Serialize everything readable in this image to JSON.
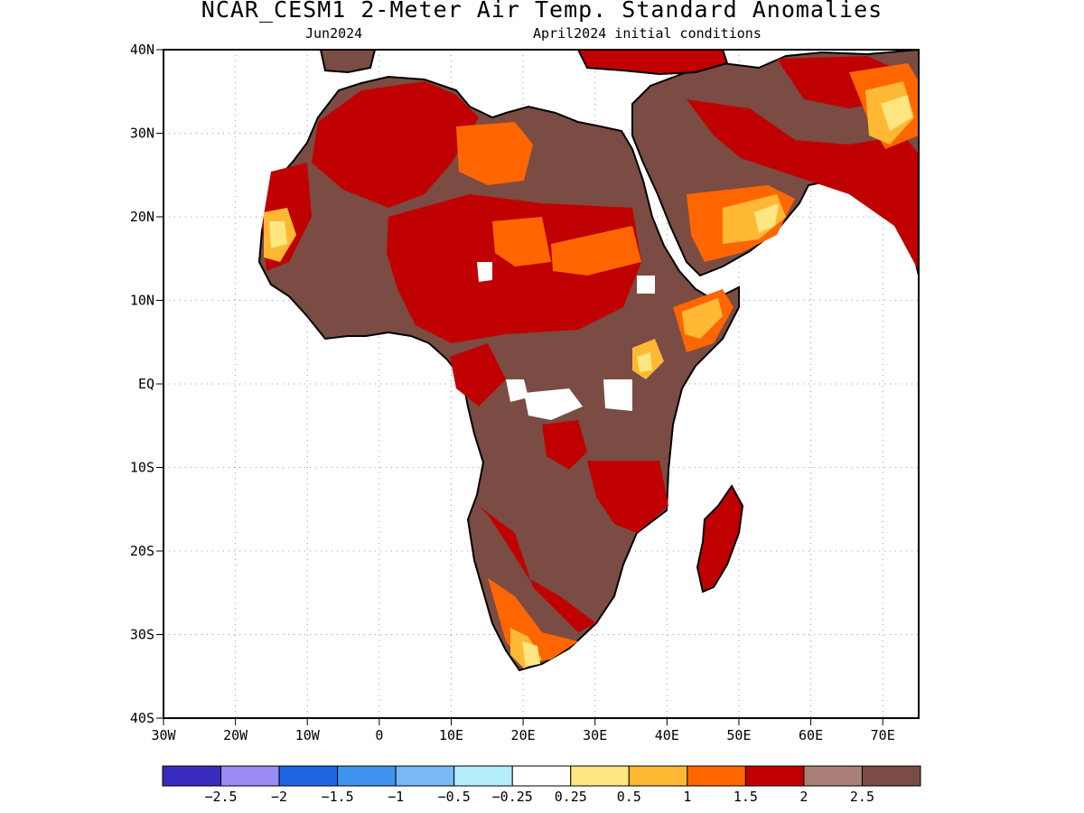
{
  "header": {
    "title": "NCAR_CESM1 2-Meter Air Temp. Standard Anomalies",
    "valid_month": "Jun2024",
    "initial_conditions": "April2024 initial conditions"
  },
  "map": {
    "lon_range": [
      -30,
      75
    ],
    "lat_range": [
      -40,
      40
    ],
    "lat_ticks": [
      "40N",
      "30N",
      "20N",
      "10N",
      "EQ",
      "10S",
      "20S",
      "30S",
      "40S"
    ],
    "lon_ticks": [
      "30W",
      "20W",
      "10W",
      "0",
      "10E",
      "20E",
      "30E",
      "40E",
      "50E",
      "60E",
      "70E"
    ],
    "grid": true,
    "land_fill_color": "#7a4c43"
  },
  "colorbar": {
    "colors": [
      "#3a2bbf",
      "#9c8af5",
      "#1f66e5",
      "#3f94f0",
      "#77b8f5",
      "#b3eefa",
      "#ffffff",
      "#ffe680",
      "#ffb833",
      "#ff6600",
      "#c00000",
      "#a97f77",
      "#7a4c43"
    ],
    "labels": [
      "−2.5",
      "−2",
      "−1.5",
      "−1",
      "−0.5",
      "−0.25",
      "0.25",
      "0.5",
      "1",
      "1.5",
      "2",
      "2.5"
    ]
  }
}
